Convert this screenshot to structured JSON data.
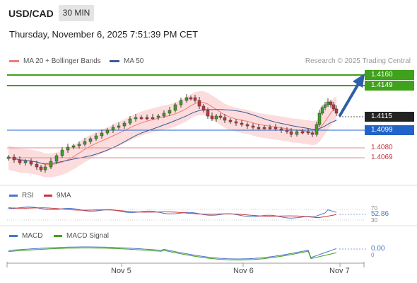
{
  "header": {
    "symbol": "USD/CAD",
    "timeframe": "30 MIN",
    "datetime": "Thursday, November 6, 2025 7:51:39 PM CET"
  },
  "legend": {
    "ma20": "MA 20 + Bollinger Bands",
    "ma50": "MA 50",
    "credit": "Research © 2025 Trading Central",
    "ma20_color": "#f07a7a",
    "ma50_color": "#3a5a9a"
  },
  "levels": {
    "resistance_2": "1.4160",
    "resistance_1": "1.4149",
    "last_price": "1.4115",
    "pivot": "1.4099",
    "support_1": "1.4080",
    "support_2": "1.4069"
  },
  "colors": {
    "resistance": "#3fa11c",
    "pivot": "#2263c9",
    "support": "#c7343c",
    "last": "#222222",
    "candle_up": "#3fa11c",
    "candle_down": "#c7343c",
    "band": "#fbd6d6",
    "arrow": "#2d5fa8"
  },
  "rsi": {
    "label": "RSI",
    "ma_label": "9MA",
    "value": "52.86",
    "level_70": "70",
    "level_30": "30",
    "rsi_color": "#4a74c9",
    "ma_color": "#c7343c"
  },
  "macd": {
    "label": "MACD",
    "signal_label": "MACD Signal",
    "value": "0.00",
    "zero": "0",
    "macd_color": "#4a74c9",
    "signal_color": "#3fa11c"
  },
  "xaxis": {
    "ticks": [
      "Nov 5",
      "Nov 6",
      "Nov 7"
    ]
  }
}
